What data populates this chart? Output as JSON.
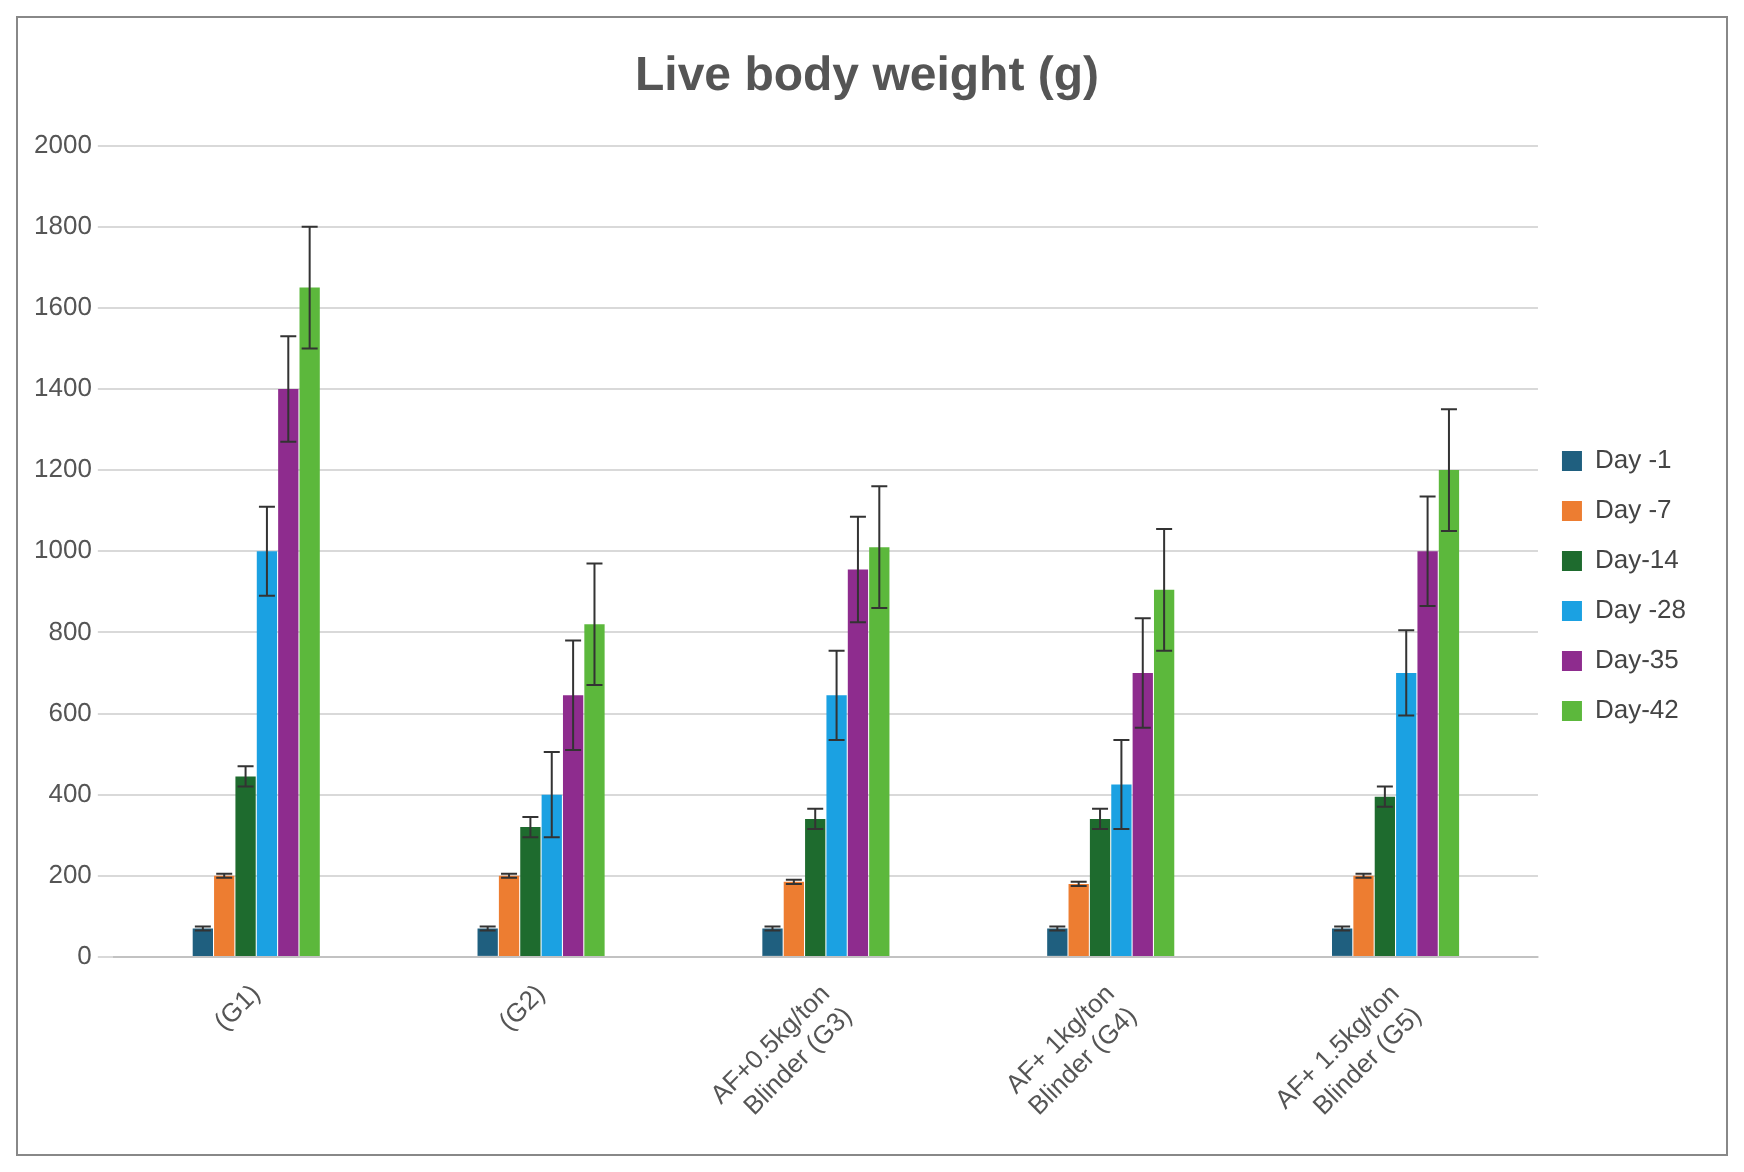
{
  "chart_data": {
    "type": "bar",
    "title": "Live body weight (g)",
    "categories": [
      "(G1)",
      "(G2)",
      "AF+0.5kg/ton\nBlinder (G3)",
      "AF+ 1kg/ton\nBlinder (G4)",
      "AF+ 1.5kg/ton\nBlinder (G5)"
    ],
    "series": [
      {
        "name": "Day -1",
        "color": "#1f5f7f",
        "values": [
          70,
          70,
          70,
          70,
          70
        ],
        "errors": [
          5,
          5,
          5,
          5,
          5
        ]
      },
      {
        "name": "Day -7",
        "color": "#ed7d31",
        "values": [
          200,
          200,
          185,
          180,
          200
        ],
        "errors": [
          5,
          5,
          5,
          5,
          5
        ]
      },
      {
        "name": "Day-14",
        "color": "#1e6b2e",
        "values": [
          445,
          320,
          340,
          340,
          395
        ],
        "errors": [
          25,
          25,
          25,
          25,
          25
        ]
      },
      {
        "name": "Day -28",
        "color": "#1ba1e2",
        "values": [
          1000,
          400,
          645,
          425,
          700
        ],
        "errors": [
          110,
          105,
          110,
          110,
          105
        ]
      },
      {
        "name": "Day-35",
        "color": "#8e2c8e",
        "values": [
          1400,
          645,
          955,
          700,
          1000
        ],
        "errors": [
          130,
          135,
          130,
          135,
          135
        ]
      },
      {
        "name": "Day-42",
        "color": "#5cb83c",
        "values": [
          1650,
          820,
          1010,
          905,
          1200
        ],
        "errors": [
          150,
          150,
          150,
          150,
          150
        ]
      }
    ],
    "ylim": [
      0,
      2000
    ],
    "yticks": [
      0,
      200,
      400,
      600,
      800,
      1000,
      1200,
      1400,
      1600,
      1800,
      2000
    ],
    "grid": "y",
    "legend": "right"
  }
}
